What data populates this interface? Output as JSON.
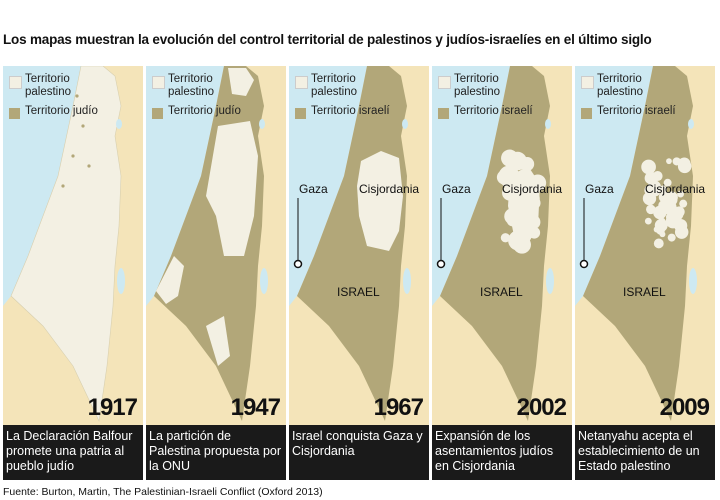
{
  "title": "Los mapas muestran la evolución del control territorial de palestinos y judíos-israelíes en el último siglo",
  "panels": [
    {
      "legend": [
        "Territorio palestino",
        "Territorio judío"
      ],
      "year": "1917",
      "caption": "La Declaración Balfour promete una patria al pueblo judío"
    },
    {
      "legend": [
        "Territorio palestino",
        "Territorio judío"
      ],
      "year": "1947",
      "caption": "La partición de Palestina propuesta por la ONU"
    },
    {
      "legend": [
        "Territorio palestino",
        "Territorio israelí"
      ],
      "year": "1967",
      "caption": "Israel  conquista Gaza y Cisjordania",
      "gaza": "Gaza",
      "west_bank": "Cisjordania",
      "israel": "ISRAEL"
    },
    {
      "legend": [
        "Territorio palestino",
        "Territorio israelí"
      ],
      "year": "2002",
      "caption": "Expansión de los asentamientos judíos en Cisjordania",
      "gaza": "Gaza",
      "west_bank": "Cisjordania",
      "israel": "ISRAEL"
    },
    {
      "legend": [
        "Territorio palestino",
        "Territorio israelí"
      ],
      "year": "2009",
      "caption": "Netanyahu acepta el establecimiento de un Estado palestino",
      "gaza": "Gaza",
      "west_bank": "Cisjordania",
      "israel": "ISRAEL"
    }
  ],
  "source": "Fuente:  Burton, Martin, The Palestinian-Israeli Conflict  (Oxford 2013)"
}
